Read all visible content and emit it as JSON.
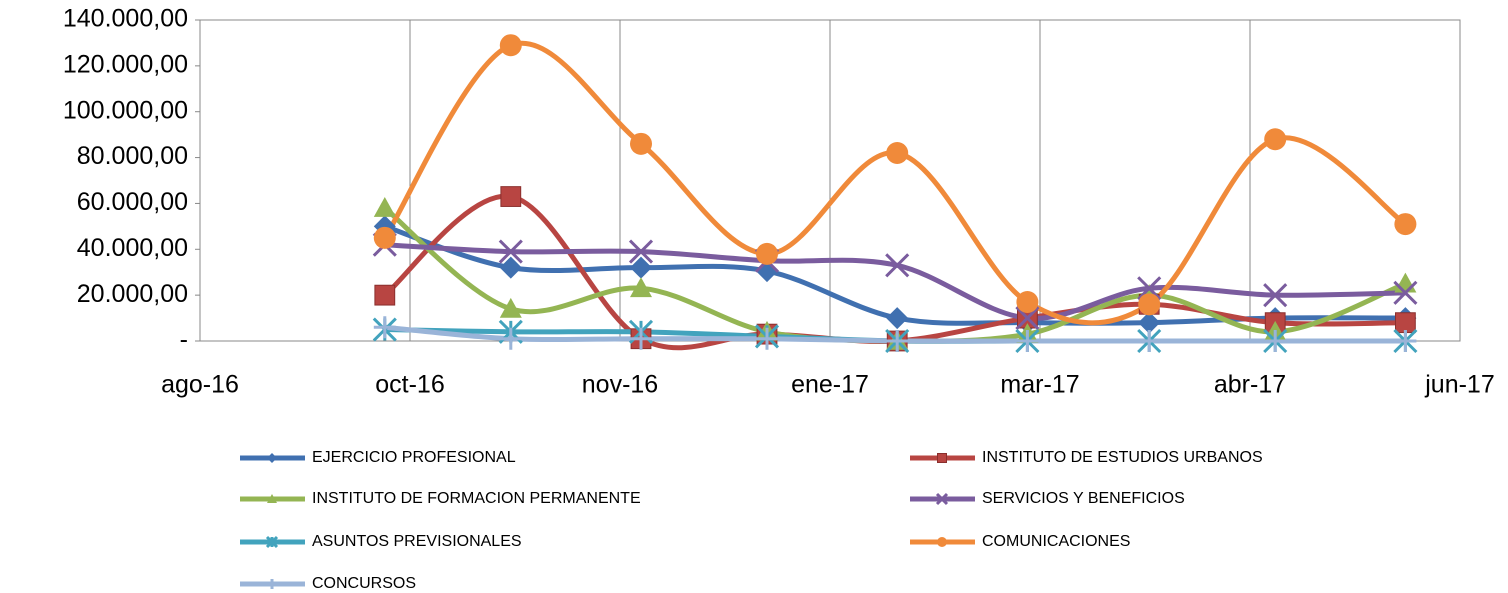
{
  "chart_data": {
    "type": "line",
    "x": [
      44,
      74,
      105,
      135,
      166,
      197,
      226,
      256,
      287
    ],
    "xlim": [
      0,
      300
    ],
    "xticks": [
      {
        "value": 0,
        "label": "ago-16"
      },
      {
        "value": 50,
        "label": "oct-16"
      },
      {
        "value": 100,
        "label": "nov-16"
      },
      {
        "value": 150,
        "label": "ene-17"
      },
      {
        "value": 200,
        "label": "mar-17"
      },
      {
        "value": 250,
        "label": "abr-17"
      },
      {
        "value": 300,
        "label": "jun-17"
      }
    ],
    "ylim": [
      0,
      140000
    ],
    "yticks": [
      {
        "value": 0,
        "label": "-"
      },
      {
        "value": 20000,
        "label": "20.000,00"
      },
      {
        "value": 40000,
        "label": "40.000,00"
      },
      {
        "value": 60000,
        "label": "60.000,00"
      },
      {
        "value": 80000,
        "label": "80.000,00"
      },
      {
        "value": 100000,
        "label": "100.000,00"
      },
      {
        "value": 120000,
        "label": "120.000,00"
      },
      {
        "value": 140000,
        "label": "140.000,00"
      }
    ],
    "grid": "x",
    "series": [
      {
        "name": "EJERCICIO PROFESIONAL",
        "color": "#4070b0",
        "marker": "diamond",
        "values": [
          50000,
          32000,
          32000,
          30500,
          10000,
          8000,
          8000,
          10000,
          10000
        ]
      },
      {
        "name": "INSTITUTO DE ESTUDIOS URBANOS",
        "color": "#b84542",
        "marker": "square",
        "values": [
          20000,
          63000,
          1000,
          3000,
          0,
          10000,
          16000,
          8000,
          8000
        ]
      },
      {
        "name": "INSTITUTO DE FORMACION PERMANENTE",
        "color": "#94b553",
        "marker": "triangle",
        "values": [
          58000,
          14000,
          23000,
          4000,
          0,
          3000,
          20000,
          4000,
          25000
        ]
      },
      {
        "name": "SERVICIOS Y BENEFICIOS",
        "color": "#7a5c9e",
        "marker": "x",
        "values": [
          42000,
          39000,
          39000,
          35000,
          33000,
          10000,
          23000,
          20000,
          21000
        ]
      },
      {
        "name": "ASUNTOS PREVISIONALES",
        "color": "#42a3bd",
        "marker": "star",
        "values": [
          5000,
          4000,
          4000,
          2000,
          0,
          0,
          0,
          0,
          0
        ]
      },
      {
        "name": "COMUNICACIONES",
        "color": "#f08a3a",
        "marker": "circle",
        "values": [
          45000,
          129000,
          86000,
          38000,
          82000,
          17000,
          16000,
          88000,
          51000
        ]
      },
      {
        "name": "CONCURSOS",
        "color": "#9ab4d8",
        "marker": "plus",
        "values": [
          6000,
          1000,
          1000,
          1000,
          0,
          0,
          0,
          0,
          0
        ]
      }
    ]
  }
}
